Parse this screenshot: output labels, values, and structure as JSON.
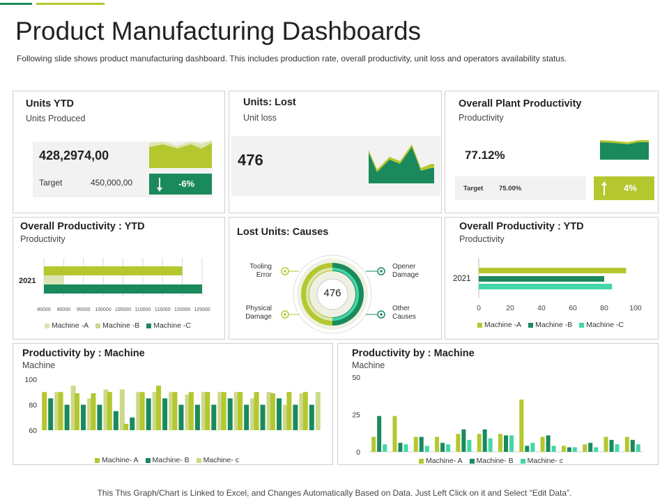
{
  "header": {
    "title": "Product Manufacturing Dashboards",
    "subtitle": "Following slide shows product manufacturing dashboard. This includes production rate, overall productivity, unit loss and operators availability status."
  },
  "colors": {
    "lime": "#b5c72f",
    "green": "#1a8a5c",
    "light": "#cdd98a",
    "mint": "#43d6a8",
    "pale": "#dde6b3"
  },
  "units_ytd": {
    "title": "Units YTD",
    "subtitle": "Units Produced",
    "value": "428,2974,00",
    "target_label": "Target",
    "target_value": "450,000,00",
    "change": "-6%"
  },
  "units_lost": {
    "title": "Units: Lost",
    "subtitle": "Unit loss",
    "value": "476"
  },
  "plant_productivity": {
    "title": "Overall Plant Productivity",
    "subtitle": "Productivity",
    "value": "77.12%",
    "target_label": "Target",
    "target_value": "75.00%",
    "change": "4%"
  },
  "causes": {
    "title": "Lost Units: Causes",
    "center": "476",
    "labels": [
      "Tooling\nError",
      "Opener\nDamage",
      "Physical\nDamage",
      "Other\nCauses"
    ]
  },
  "prod_ytd_left": {
    "title": "Overall Productivity : YTD",
    "subtitle": "Productivity"
  },
  "prod_ytd_right": {
    "title": "Overall Productivity : YTD",
    "subtitle": "Productivity"
  },
  "machine_left": {
    "title": "Productivity by : Machine",
    "subtitle": "Machine"
  },
  "machine_right": {
    "title": "Productivity by : Machine",
    "subtitle": "Machine"
  },
  "footer": "This This Graph/Chart is Linked to Excel, and Changes Automatically Based on Data. Just Left Click on it and Select “Edit Data”.",
  "chart_data": [
    {
      "type": "bar",
      "orientation": "horizontal",
      "categories": [
        "2021"
      ],
      "series": [
        {
          "name": "Machine -A",
          "values": [
            90000
          ]
        },
        {
          "name": "Machine -B",
          "values": [
            120000
          ]
        },
        {
          "name": "Machine -C",
          "values": [
            125000
          ]
        }
      ],
      "xlim": [
        85000,
        125000
      ],
      "ticks": [
        "85000",
        "90000",
        "95000",
        "100000",
        "105000",
        "110000",
        "115000",
        "120000",
        "125000"
      ]
    },
    {
      "type": "bar",
      "orientation": "horizontal",
      "categories": [
        "2021"
      ],
      "series": [
        {
          "name": "Machine -A",
          "values": [
            94
          ]
        },
        {
          "name": "Machine -B",
          "values": [
            80
          ]
        },
        {
          "name": "Machine -C",
          "values": [
            85
          ]
        }
      ],
      "xlim": [
        0,
        100
      ],
      "ticks": [
        "0",
        "20",
        "40",
        "60",
        "80",
        "100"
      ]
    },
    {
      "type": "bar",
      "ylim": [
        60,
        100
      ],
      "ticks": [
        "60",
        "80",
        "100"
      ],
      "series": [
        {
          "name": "Machine- A",
          "values": [
            90,
            90,
            89,
            89,
            90,
            65,
            90,
            95,
            90,
            90,
            90,
            90,
            90,
            90,
            89,
            90,
            90
          ]
        },
        {
          "name": "Machine- B",
          "values": [
            85,
            80,
            80,
            80,
            75,
            70,
            85,
            85,
            80,
            80,
            80,
            85,
            80,
            80,
            85,
            80,
            80
          ]
        },
        {
          "name": "Machine- c",
          "values": [
            90,
            95,
            85,
            92,
            92,
            90,
            90,
            90,
            88,
            90,
            90,
            90,
            85,
            90,
            80,
            89,
            90
          ]
        }
      ]
    },
    {
      "type": "bar",
      "ylim": [
        0,
        50
      ],
      "ticks": [
        "0",
        "25",
        "50"
      ],
      "series": [
        {
          "name": "Machine- A",
          "values": [
            10,
            24,
            10,
            10,
            12,
            12,
            12,
            35,
            10,
            4,
            5,
            10,
            10
          ]
        },
        {
          "name": "Machine- B",
          "values": [
            24,
            6,
            10,
            6,
            15,
            15,
            11,
            4,
            11,
            3,
            6,
            8,
            8
          ]
        },
        {
          "name": "Machine- c",
          "values": [
            5,
            5,
            4,
            5,
            8,
            9,
            11,
            6,
            4,
            3,
            3,
            5,
            5
          ]
        }
      ]
    }
  ]
}
